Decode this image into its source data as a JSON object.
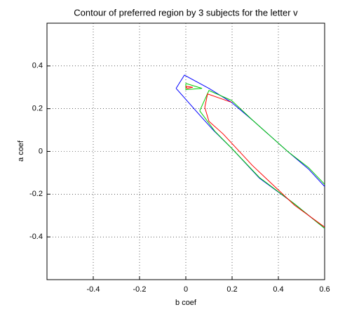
{
  "chart_data": {
    "type": "line",
    "title": "Contour of preferred region by 3 subjects for the letter v",
    "xlabel": "b coef",
    "ylabel": "a coef",
    "xlim": [
      -0.6,
      0.6
    ],
    "xticks": [
      -0.4,
      -0.2,
      0,
      0.2,
      0.4,
      0.6
    ],
    "ylim": [
      -0.6,
      0.6
    ],
    "yticks": [
      -0.4,
      -0.2,
      0,
      0.2,
      0.4
    ],
    "grid": true,
    "series": [
      {
        "color": "#0000ff",
        "x": [
          -0.042,
          -0.006,
          0.1,
          0.197,
          0.294,
          0.44,
          0.53,
          0.6,
          null,
          0.6,
          0.47,
          0.318,
          0.197,
          0.12,
          0.06,
          -0.042
        ],
        "values": [
          0.295,
          0.357,
          0.295,
          0.23,
          0.141,
          0,
          -0.082,
          -0.164,
          null,
          -0.36,
          -0.246,
          -0.125,
          0.016,
          0.098,
          0.17,
          0.295
        ]
      },
      {
        "color": "#00cc00",
        "x": [
          0,
          0.07,
          0,
          0,
          null,
          0.06,
          0.1,
          0.197,
          0.294,
          0.44,
          0.53,
          0.6,
          null,
          0.6,
          0.47,
          0.318,
          0.197,
          0.125,
          0.06
        ],
        "values": [
          0.318,
          0.295,
          0.289,
          0.318,
          null,
          0.19,
          0.285,
          0.239,
          0.141,
          0,
          -0.075,
          -0.154,
          null,
          -0.36,
          -0.246,
          -0.122,
          0.016,
          0.095,
          0.19
        ]
      },
      {
        "color": "#ff0000",
        "x": [
          0,
          0.03,
          0.005,
          0,
          null,
          0.197,
          0.094,
          0.082,
          0.1,
          0.161,
          0.288,
          0.47,
          0.6
        ],
        "values": [
          0.305,
          0.3,
          0.295,
          0.305,
          null,
          0.23,
          0.269,
          0.206,
          0.141,
          0.082,
          -0.066,
          -0.252,
          -0.354
        ]
      }
    ]
  }
}
